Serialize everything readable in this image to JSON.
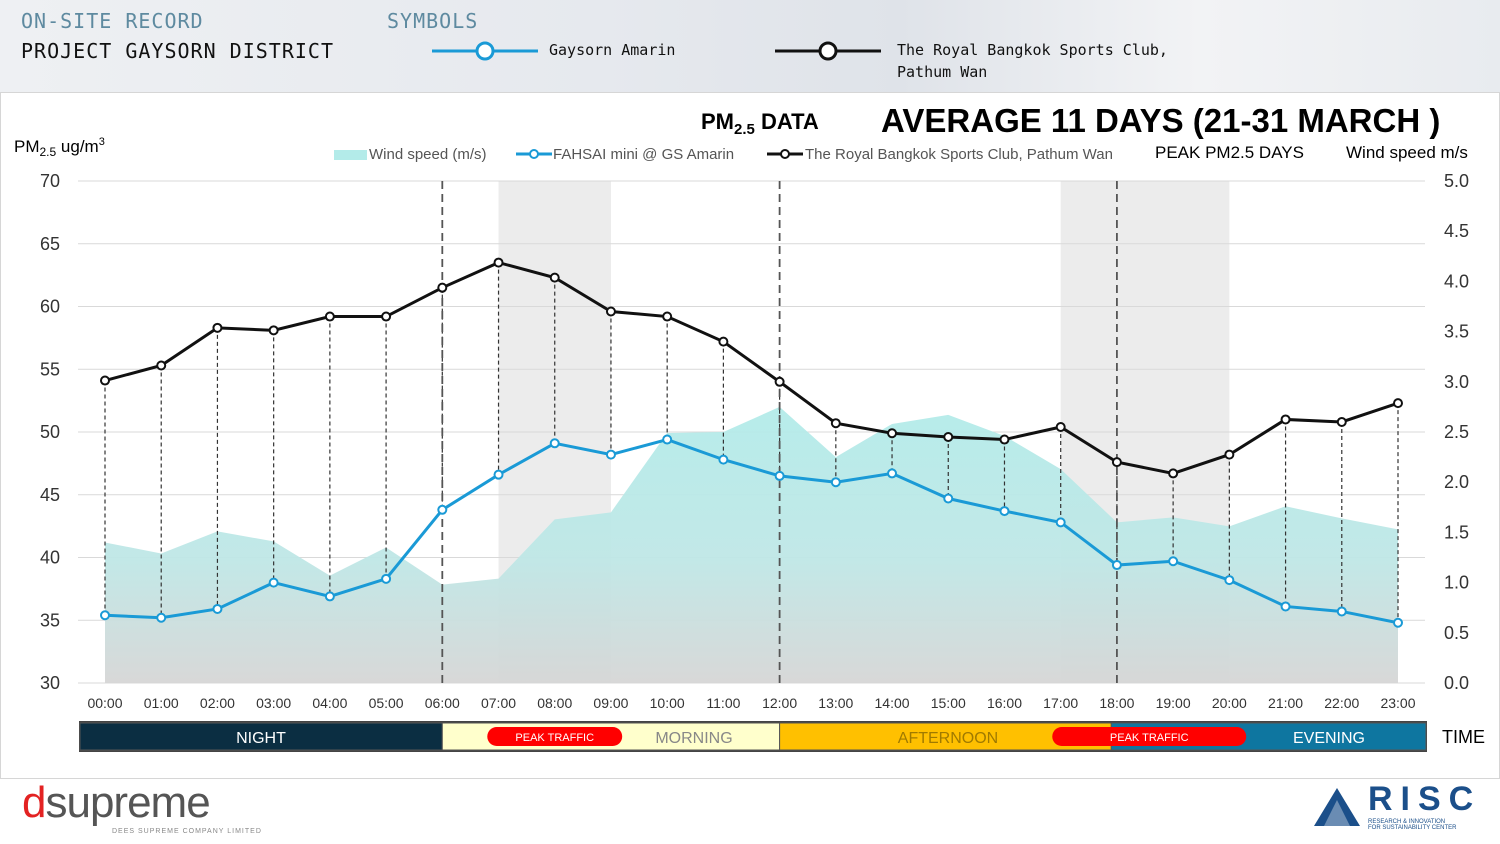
{
  "header": {
    "record_label": "ON-SITE RECORD",
    "project_name": "PROJECT GAYSORN DISTRICT",
    "symbols_label": "SYMBOLS",
    "symbol_blue": "Gaysorn Amarin",
    "symbol_black_line1": "The Royal Bangkok Sports Club,",
    "symbol_black_line2": "Pathum Wan"
  },
  "colors": {
    "blue": "#1a9ad6",
    "black": "#111111",
    "wind": "#b3ebe9",
    "peak_band": "#ececec",
    "night": "#0b2e42",
    "morning": "#ffffcc",
    "afternoon": "#ffc000",
    "evening": "#0e76a0",
    "peak_traffic": "#ff0000"
  },
  "chart_data": {
    "type": "line",
    "title_prefix": "PM",
    "title_sub": "2.5",
    "title_suffix": "DATA",
    "subtitle": "AVERAGE 11 DAYS (21-31 MARCH )",
    "ylabel_prefix": "PM",
    "ylabel_sub": "2.5",
    "ylabel_suffix": "ug/m",
    "ylabel_sup": "3",
    "y2label": "Wind speed m/s",
    "peak_label": "PEAK PM2.5 DAYS",
    "xlabel": "TIME",
    "ylim": [
      30,
      70
    ],
    "yticks": [
      "30",
      "35",
      "40",
      "45",
      "50",
      "55",
      "60",
      "65",
      "70"
    ],
    "y2lim": [
      0,
      5
    ],
    "y2ticks": [
      "0.0",
      "0.5",
      "1.0",
      "1.5",
      "2.0",
      "2.5",
      "3.0",
      "3.5",
      "4.0",
      "4.5",
      "5.0"
    ],
    "grid": true,
    "legend_position": "top",
    "categories": [
      "00:00",
      "01:00",
      "02:00",
      "03:00",
      "04:00",
      "05:00",
      "06:00",
      "07:00",
      "08:00",
      "09:00",
      "10:00",
      "11:00",
      "12:00",
      "13:00",
      "14:00",
      "15:00",
      "16:00",
      "17:00",
      "18:00",
      "19:00",
      "20:00",
      "21:00",
      "22:00",
      "23:00"
    ],
    "series": [
      {
        "name": "Wind speed (m/s)",
        "kind": "area",
        "axis": "right",
        "values": [
          1.4,
          1.29,
          1.51,
          1.41,
          1.07,
          1.35,
          0.98,
          1.04,
          1.63,
          1.7,
          2.49,
          2.5,
          2.75,
          2.25,
          2.58,
          2.67,
          2.46,
          2.13,
          1.6,
          1.65,
          1.56,
          1.76,
          1.64,
          1.53
        ]
      },
      {
        "name": "FAHSAI mini @ GS Amarin",
        "kind": "line",
        "axis": "left",
        "values": [
          35.4,
          35.2,
          35.9,
          38.0,
          36.9,
          38.3,
          43.8,
          46.6,
          49.1,
          48.2,
          49.4,
          47.8,
          46.5,
          46.0,
          46.7,
          44.7,
          43.7,
          42.8,
          39.4,
          39.7,
          38.2,
          36.1,
          35.7,
          34.8
        ]
      },
      {
        "name": "The Royal Bangkok Sports Club, Pathum Wan",
        "kind": "line",
        "axis": "left",
        "values": [
          54.1,
          55.3,
          58.3,
          58.1,
          59.2,
          59.2,
          61.5,
          63.5,
          62.3,
          59.6,
          59.2,
          57.2,
          54.0,
          50.7,
          49.9,
          49.6,
          49.4,
          50.4,
          47.6,
          46.7,
          48.2,
          51.0,
          50.8,
          52.3
        ]
      }
    ],
    "peak_bands": [
      [
        "07:00",
        "09:00"
      ],
      [
        "17:00",
        "20:00"
      ]
    ],
    "dividers": [
      "06:00",
      "12:00",
      "18:00"
    ],
    "periods": [
      {
        "label": "NIGHT",
        "from": 0,
        "to": 6.0
      },
      {
        "label": "MORNING",
        "from": 6.0,
        "to": 12.0
      },
      {
        "label": "AFTERNOON",
        "from": 12.0,
        "to": 17.9
      },
      {
        "label": "EVENING",
        "from": 17.9,
        "to": 23.5
      }
    ],
    "traffic": [
      {
        "label": "PEAK TRAFFIC",
        "from": 6.8,
        "to": 9.2
      },
      {
        "label": "PEAK TRAFFIC",
        "from": 16.85,
        "to": 20.3
      }
    ]
  },
  "footer": {
    "left_logo": "dsupreme",
    "left_logo_sub": "DEES SUPREME COMPANY LIMITED",
    "right_logo": "RISC",
    "right_logo_sub1": "RESEARCH & INNOVATION",
    "right_logo_sub2": "FOR SUSTAINABILITY CENTER"
  }
}
